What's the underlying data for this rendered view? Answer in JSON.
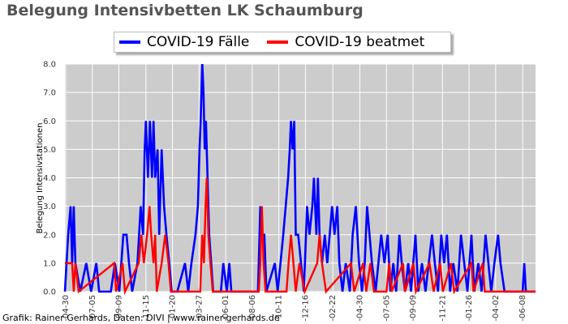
{
  "colors": {
    "background": "#ffffff",
    "plot_background": "#cccccc",
    "grid": "#ffffff",
    "faelle": "#0000ff",
    "beatmet": "#ff0000",
    "title": "#555555"
  },
  "footer": {
    "credit": "Grafik: Rainer Gerhards, Daten: DIVI | www.rainer-gerhards.de"
  },
  "chart_data": {
    "type": "line",
    "title": "Belegung Intensivbetten LK Schaumburg",
    "xlabel": "",
    "ylabel": "Belegung Intensivstationen",
    "ylim": [
      0,
      8
    ],
    "yticks": [
      0.0,
      1.0,
      2.0,
      3.0,
      4.0,
      5.0,
      6.0,
      7.0,
      8.0
    ],
    "ytick_labels": [
      "0.0",
      "1.0",
      "2.0",
      "3.0",
      "4.0",
      "5.0",
      "6.0",
      "7.0",
      "8.0"
    ],
    "xticks": [
      "2020-04-30",
      "2020-07-05",
      "2020-09-09",
      "2020-11-15",
      "2021-01-20",
      "2021-03-27",
      "2021-06-01",
      "2021-08-06",
      "2021-10-11",
      "2021-12-16",
      "2022-02-22",
      "2022-04-30",
      "2022-07-05",
      "2022-09-09",
      "2022-11-21",
      "2023-01-26",
      "2023-04-02",
      "2023-06-08"
    ],
    "xtick_labels": [
      "-04-30",
      "-07-05",
      "-09-09",
      "-11-15",
      "-01-20",
      "-03-27",
      "-06-01",
      "-08-06",
      "-10-11",
      "-12-16",
      "-02-22",
      "-04-30",
      "-07-05",
      "-09-09",
      "-11-21",
      "-01-26",
      "-04-02",
      "-06-08"
    ],
    "x_range": [
      "2020-04-28",
      "2023-07-10"
    ],
    "grid": true,
    "legend_position": "top-center",
    "series": [
      {
        "name": "COVID-19 Fälle",
        "color": "#0000ff",
        "points": [
          [
            "2020-04-28",
            0
          ],
          [
            "2020-05-06",
            2
          ],
          [
            "2020-05-12",
            3
          ],
          [
            "2020-05-16",
            1
          ],
          [
            "2020-05-20",
            3
          ],
          [
            "2020-05-24",
            1
          ],
          [
            "2020-06-05",
            0
          ],
          [
            "2020-06-20",
            1
          ],
          [
            "2020-07-02",
            0
          ],
          [
            "2020-07-15",
            1
          ],
          [
            "2020-07-22",
            0
          ],
          [
            "2020-08-20",
            0
          ],
          [
            "2020-08-30",
            1
          ],
          [
            "2020-09-10",
            0
          ],
          [
            "2020-09-20",
            2
          ],
          [
            "2020-09-28",
            2
          ],
          [
            "2020-10-04",
            1
          ],
          [
            "2020-10-12",
            0
          ],
          [
            "2020-10-25",
            1
          ],
          [
            "2020-11-02",
            3
          ],
          [
            "2020-11-08",
            2
          ],
          [
            "2020-11-12",
            5
          ],
          [
            "2020-11-15",
            6
          ],
          [
            "2020-11-20",
            4
          ],
          [
            "2020-11-25",
            6
          ],
          [
            "2020-11-30",
            4
          ],
          [
            "2020-12-04",
            6
          ],
          [
            "2020-12-08",
            4
          ],
          [
            "2020-12-14",
            5
          ],
          [
            "2020-12-18",
            2
          ],
          [
            "2020-12-24",
            5
          ],
          [
            "2020-12-30",
            3
          ],
          [
            "2021-01-05",
            2
          ],
          [
            "2021-01-12",
            1
          ],
          [
            "2021-01-18",
            0
          ],
          [
            "2021-02-01",
            0
          ],
          [
            "2021-02-20",
            1
          ],
          [
            "2021-02-28",
            0
          ],
          [
            "2021-03-08",
            1
          ],
          [
            "2021-03-18",
            2
          ],
          [
            "2021-03-24",
            3
          ],
          [
            "2021-03-28",
            5
          ],
          [
            "2021-03-31",
            6
          ],
          [
            "2021-04-04",
            8
          ],
          [
            "2021-04-07",
            7
          ],
          [
            "2021-04-10",
            5
          ],
          [
            "2021-04-13",
            6
          ],
          [
            "2021-04-17",
            4
          ],
          [
            "2021-04-21",
            2
          ],
          [
            "2021-04-26",
            1
          ],
          [
            "2021-05-01",
            0
          ],
          [
            "2021-05-20",
            0
          ],
          [
            "2021-05-26",
            1
          ],
          [
            "2021-06-04",
            0
          ],
          [
            "2021-06-10",
            1
          ],
          [
            "2021-06-15",
            0
          ],
          [
            "2021-08-20",
            0
          ],
          [
            "2021-08-26",
            3
          ],
          [
            "2021-08-31",
            2
          ],
          [
            "2021-09-05",
            2
          ],
          [
            "2021-09-10",
            0
          ],
          [
            "2021-10-01",
            1
          ],
          [
            "2021-10-08",
            0
          ],
          [
            "2021-10-22",
            2
          ],
          [
            "2021-10-28",
            3
          ],
          [
            "2021-11-03",
            4
          ],
          [
            "2021-11-07",
            5
          ],
          [
            "2021-11-10",
            6
          ],
          [
            "2021-11-14",
            5
          ],
          [
            "2021-11-18",
            6
          ],
          [
            "2021-11-22",
            2
          ],
          [
            "2021-11-28",
            2
          ],
          [
            "2021-12-05",
            1
          ],
          [
            "2021-12-12",
            0
          ],
          [
            "2021-12-20",
            3
          ],
          [
            "2021-12-26",
            2
          ],
          [
            "2022-01-02",
            3
          ],
          [
            "2022-01-06",
            4
          ],
          [
            "2022-01-12",
            2
          ],
          [
            "2022-01-16",
            4
          ],
          [
            "2022-01-20",
            2
          ],
          [
            "2022-01-26",
            1
          ],
          [
            "2022-02-02",
            2
          ],
          [
            "2022-02-08",
            1
          ],
          [
            "2022-02-14",
            2
          ],
          [
            "2022-02-20",
            3
          ],
          [
            "2022-02-26",
            2
          ],
          [
            "2022-03-05",
            3
          ],
          [
            "2022-03-10",
            1
          ],
          [
            "2022-03-18",
            0
          ],
          [
            "2022-03-26",
            1
          ],
          [
            "2022-04-05",
            0
          ],
          [
            "2022-04-12",
            2
          ],
          [
            "2022-04-20",
            3
          ],
          [
            "2022-04-28",
            1
          ],
          [
            "2022-05-05",
            0
          ],
          [
            "2022-05-12",
            1
          ],
          [
            "2022-05-18",
            3
          ],
          [
            "2022-05-24",
            2
          ],
          [
            "2022-05-30",
            1
          ],
          [
            "2022-06-08",
            0
          ],
          [
            "2022-06-15",
            1
          ],
          [
            "2022-06-22",
            2
          ],
          [
            "2022-06-30",
            1
          ],
          [
            "2022-07-08",
            2
          ],
          [
            "2022-07-15",
            0
          ],
          [
            "2022-07-22",
            1
          ],
          [
            "2022-07-29",
            0
          ],
          [
            "2022-08-06",
            2
          ],
          [
            "2022-08-12",
            1
          ],
          [
            "2022-08-20",
            0
          ],
          [
            "2022-08-28",
            1
          ],
          [
            "2022-09-04",
            0
          ],
          [
            "2022-09-15",
            2
          ],
          [
            "2022-09-22",
            0
          ],
          [
            "2022-10-01",
            1
          ],
          [
            "2022-10-10",
            0
          ],
          [
            "2022-10-18",
            1
          ],
          [
            "2022-10-26",
            2
          ],
          [
            "2022-11-02",
            1
          ],
          [
            "2022-11-10",
            0
          ],
          [
            "2022-11-18",
            2
          ],
          [
            "2022-11-25",
            1
          ],
          [
            "2022-12-02",
            2
          ],
          [
            "2022-12-10",
            0
          ],
          [
            "2022-12-18",
            1
          ],
          [
            "2022-12-28",
            0
          ],
          [
            "2023-01-06",
            2
          ],
          [
            "2023-01-14",
            1
          ],
          [
            "2023-01-22",
            0
          ],
          [
            "2023-02-01",
            2
          ],
          [
            "2023-02-08",
            0
          ],
          [
            "2023-02-18",
            1
          ],
          [
            "2023-02-26",
            0
          ],
          [
            "2023-03-08",
            2
          ],
          [
            "2023-03-15",
            1
          ],
          [
            "2023-03-22",
            0
          ],
          [
            "2023-03-30",
            1
          ],
          [
            "2023-04-08",
            2
          ],
          [
            "2023-04-14",
            1
          ],
          [
            "2023-04-24",
            0
          ],
          [
            "2023-06-08",
            0
          ],
          [
            "2023-06-12",
            1
          ],
          [
            "2023-06-16",
            0
          ],
          [
            "2023-07-10",
            0
          ]
        ]
      },
      {
        "name": "COVID-19 beatmet",
        "color": "#ff0000",
        "points": [
          [
            "2020-04-28",
            1
          ],
          [
            "2020-05-16",
            1
          ],
          [
            "2020-05-20",
            0
          ],
          [
            "2020-05-24",
            1
          ],
          [
            "2020-06-01",
            0
          ],
          [
            "2020-08-28",
            1
          ],
          [
            "2020-09-02",
            0
          ],
          [
            "2020-09-18",
            1
          ],
          [
            "2020-09-24",
            0
          ],
          [
            "2020-10-28",
            1
          ],
          [
            "2020-11-04",
            2
          ],
          [
            "2020-11-10",
            1
          ],
          [
            "2020-11-18",
            2
          ],
          [
            "2020-11-24",
            3
          ],
          [
            "2020-11-28",
            2
          ],
          [
            "2020-12-04",
            1
          ],
          [
            "2020-12-08",
            2
          ],
          [
            "2020-12-12",
            0
          ],
          [
            "2020-12-24",
            1
          ],
          [
            "2021-01-02",
            2
          ],
          [
            "2021-01-10",
            1
          ],
          [
            "2021-01-16",
            0
          ],
          [
            "2021-03-30",
            0
          ],
          [
            "2021-04-04",
            2
          ],
          [
            "2021-04-08",
            1
          ],
          [
            "2021-04-12",
            3
          ],
          [
            "2021-04-15",
            4
          ],
          [
            "2021-04-19",
            2
          ],
          [
            "2021-04-24",
            1
          ],
          [
            "2021-04-30",
            0
          ],
          [
            "2021-08-22",
            0
          ],
          [
            "2021-08-26",
            1
          ],
          [
            "2021-08-30",
            3
          ],
          [
            "2021-09-03",
            1
          ],
          [
            "2021-09-08",
            0
          ],
          [
            "2021-10-30",
            0
          ],
          [
            "2021-11-04",
            1
          ],
          [
            "2021-11-10",
            2
          ],
          [
            "2021-11-16",
            1
          ],
          [
            "2021-11-22",
            0
          ],
          [
            "2021-12-01",
            1
          ],
          [
            "2021-12-14",
            0
          ],
          [
            "2022-01-14",
            1
          ],
          [
            "2022-01-20",
            2
          ],
          [
            "2022-01-26",
            1
          ],
          [
            "2022-02-05",
            0
          ],
          [
            "2022-04-08",
            1
          ],
          [
            "2022-04-16",
            0
          ],
          [
            "2022-05-08",
            1
          ],
          [
            "2022-05-16",
            0
          ],
          [
            "2022-05-26",
            1
          ],
          [
            "2022-06-04",
            0
          ],
          [
            "2022-07-05",
            0
          ],
          [
            "2022-07-12",
            1
          ],
          [
            "2022-07-18",
            0
          ],
          [
            "2022-08-15",
            1
          ],
          [
            "2022-08-20",
            0
          ],
          [
            "2022-09-10",
            1
          ],
          [
            "2022-09-16",
            0
          ],
          [
            "2022-10-20",
            1
          ],
          [
            "2022-10-30",
            0
          ],
          [
            "2022-11-15",
            1
          ],
          [
            "2022-11-22",
            0
          ],
          [
            "2022-12-12",
            1
          ],
          [
            "2022-12-20",
            0
          ],
          [
            "2023-02-01",
            1
          ],
          [
            "2023-02-06",
            0
          ],
          [
            "2023-03-01",
            1
          ],
          [
            "2023-03-06",
            0
          ],
          [
            "2023-07-10",
            0
          ]
        ]
      }
    ]
  }
}
